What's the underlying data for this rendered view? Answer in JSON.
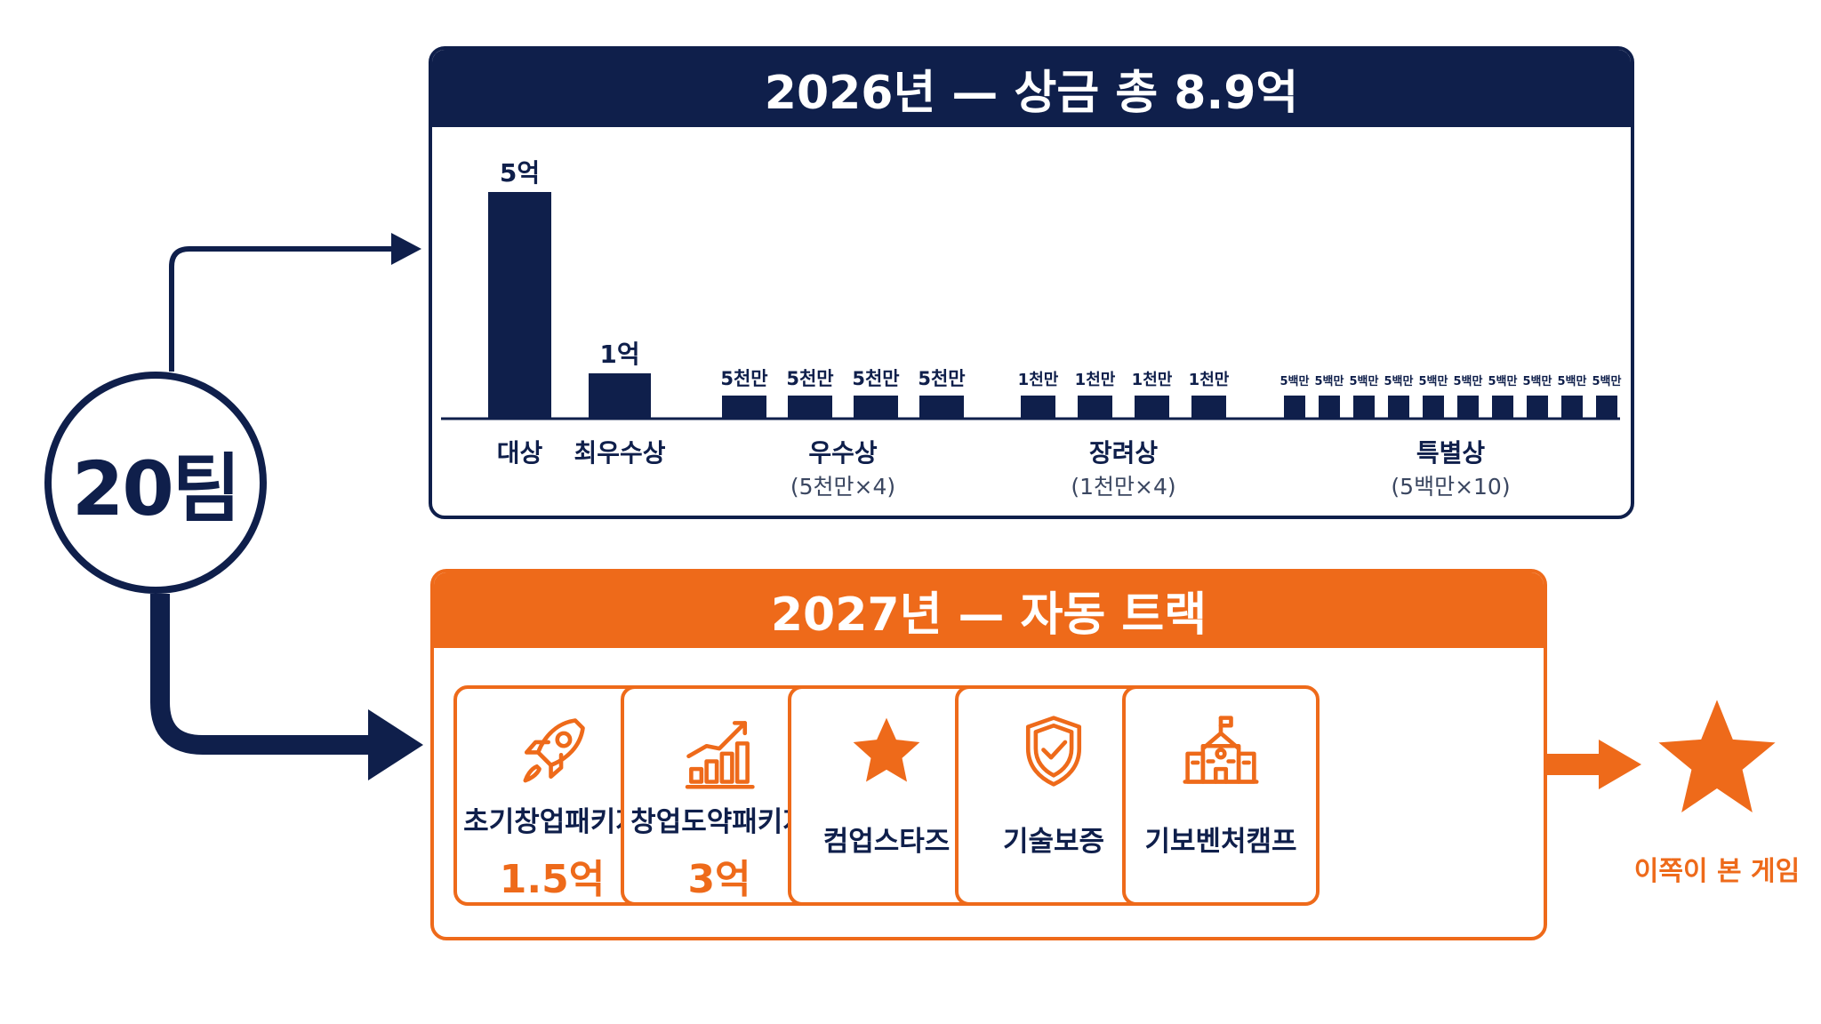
{
  "teams_label": "20팀",
  "colors": {
    "navy": "#0f1f4b",
    "orange": "#ee6a1a"
  },
  "year_2026": {
    "title": "2026년  —  상금 총 8.9억",
    "chart_data": {
      "type": "bar",
      "unit": "만원",
      "ylim": [
        0,
        50000
      ],
      "groups": [
        {
          "label": "대상",
          "sub": "",
          "values": [
            50000
          ],
          "value_labels": [
            "5억"
          ]
        },
        {
          "label": "최우수상",
          "sub": "",
          "values": [
            10000
          ],
          "value_labels": [
            "1억"
          ]
        },
        {
          "label": "우수상",
          "sub": "(5천만×4)",
          "values": [
            5000,
            5000,
            5000,
            5000
          ],
          "value_labels": [
            "5천만",
            "5천만",
            "5천만",
            "5천만"
          ]
        },
        {
          "label": "장려상",
          "sub": "(1천만×4)",
          "values": [
            1000,
            1000,
            1000,
            1000
          ],
          "value_labels": [
            "1천만",
            "1천만",
            "1천만",
            "1천만"
          ]
        },
        {
          "label": "특별상",
          "sub": "(5백만×10)",
          "values": [
            500,
            500,
            500,
            500,
            500,
            500,
            500,
            500,
            500,
            500
          ],
          "value_labels": [
            "5백만",
            "5백만",
            "5백만",
            "5백만",
            "5백만",
            "5백만",
            "5백만",
            "5백만",
            "5백만",
            "5백만"
          ]
        }
      ]
    }
  },
  "year_2027": {
    "title": "2027년  —  자동 트랙",
    "cards": [
      {
        "label": "초기창업패키지",
        "amount": "1.5억",
        "icon": "rocket-icon"
      },
      {
        "label": "창업도약패키지",
        "amount": "3억",
        "icon": "growth-chart-icon"
      },
      {
        "label": "컴업스타즈",
        "amount": "",
        "icon": "star-icon"
      },
      {
        "label": "기술보증",
        "amount": "",
        "icon": "shield-check-icon"
      },
      {
        "label": "기보벤처캠프",
        "amount": "",
        "icon": "school-building-icon"
      }
    ]
  },
  "result": {
    "label": "이쪽이 본 게임",
    "icon": "star-icon"
  }
}
